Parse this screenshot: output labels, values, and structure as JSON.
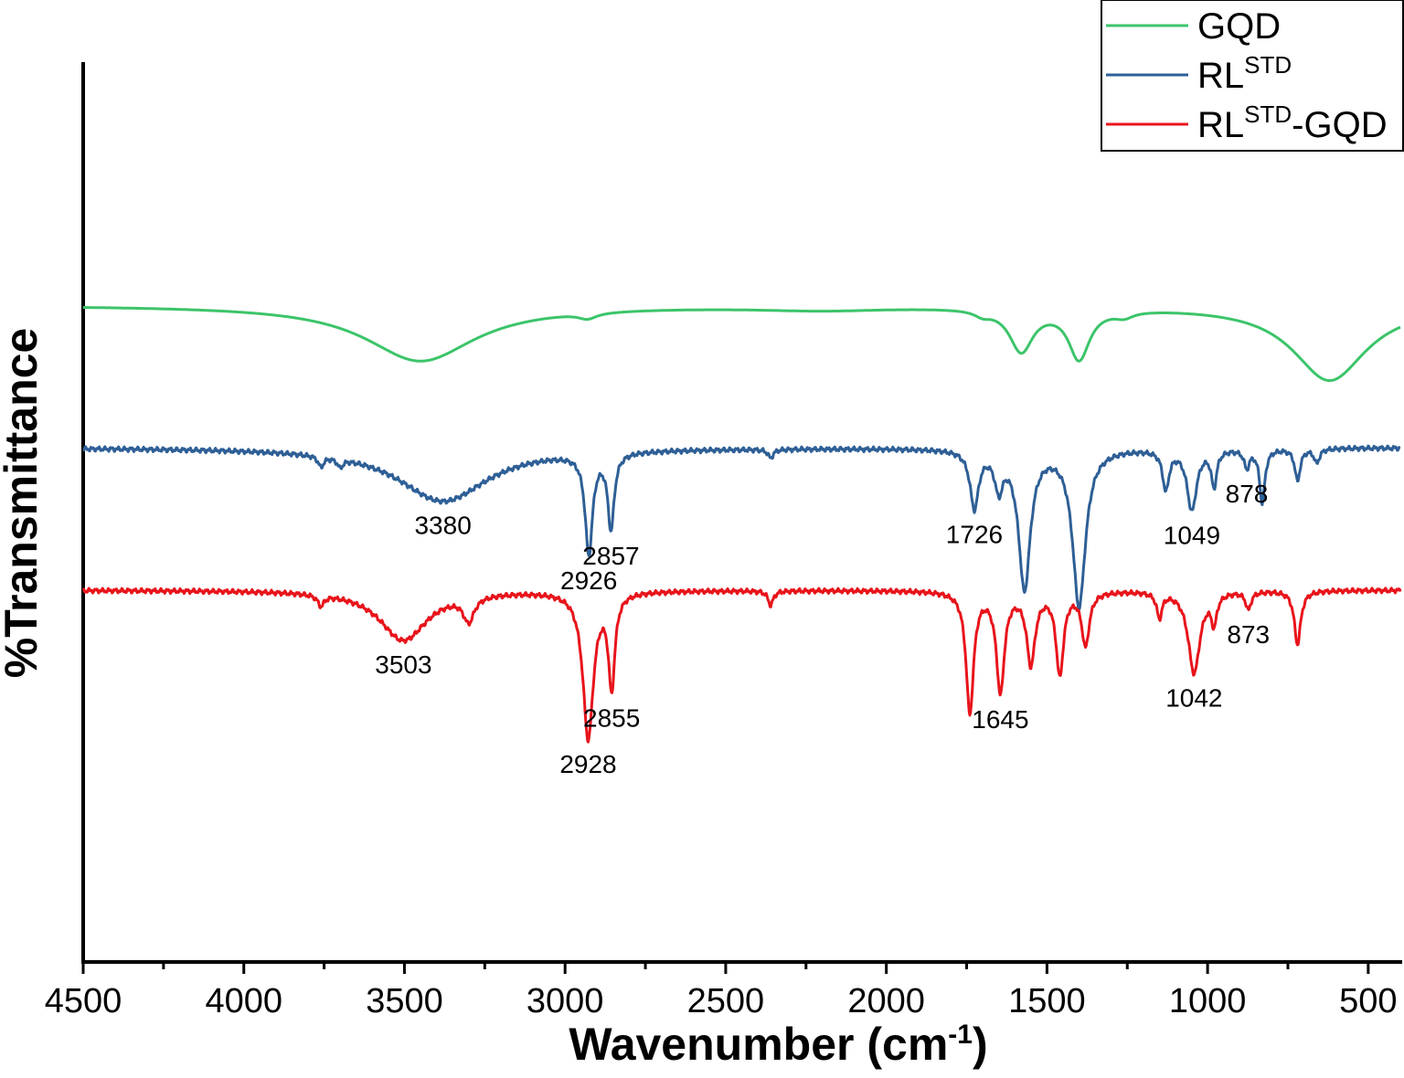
{
  "chart_data": {
    "type": "line",
    "title": "",
    "xlabel": "Wavenumber (cm",
    "xlabel_sup": "-1",
    "xlabel_close": ")",
    "ylabel": "%Transmittance",
    "xlim": [
      4500,
      400
    ],
    "x_reversed": true,
    "x_ticks": [
      4500,
      4000,
      3500,
      3000,
      2500,
      2000,
      1500,
      1000,
      500
    ],
    "y_ticks_shown": false,
    "grid": false,
    "legend_position": "top-right",
    "series": [
      {
        "name": "GQD",
        "legend_base": "GQD",
        "legend_sup": "",
        "legend_suffix": "",
        "color": "#3cc46a",
        "offset": 2.0,
        "baseline": 0.0,
        "bands": [
          {
            "center": 3450,
            "depth": 0.78,
            "width": 210
          },
          {
            "center": 2930,
            "depth": 0.08,
            "width": 35
          },
          {
            "center": 2200,
            "depth": 0.05,
            "width": 250
          },
          {
            "center": 1700,
            "depth": 0.07,
            "width": 30
          },
          {
            "center": 1580,
            "depth": 0.6,
            "width": 45
          },
          {
            "center": 1400,
            "depth": 0.7,
            "width": 40
          },
          {
            "center": 1260,
            "depth": 0.08,
            "width": 35
          },
          {
            "center": 620,
            "depth": 1.05,
            "width": 140
          }
        ]
      },
      {
        "name": "RL^STD",
        "legend_base": "RL",
        "legend_sup": "STD",
        "legend_suffix": "",
        "color": "#2e5f96",
        "offset": 0.0,
        "baseline": 0.0,
        "bands": [
          {
            "center": 3760,
            "depth": 0.15,
            "width": 10
          },
          {
            "center": 3700,
            "depth": 0.12,
            "width": 10
          },
          {
            "center": 3380,
            "depth": 0.75,
            "width": 170
          },
          {
            "center": 2926,
            "depth": 1.4,
            "width": 14
          },
          {
            "center": 2857,
            "depth": 1.05,
            "width": 12
          },
          {
            "center": 2360,
            "depth": 0.12,
            "width": 10
          },
          {
            "center": 1726,
            "depth": 0.8,
            "width": 16
          },
          {
            "center": 1650,
            "depth": 0.5,
            "width": 15
          },
          {
            "center": 1570,
            "depth": 1.95,
            "width": 22
          },
          {
            "center": 1400,
            "depth": 2.2,
            "width": 24
          },
          {
            "center": 1130,
            "depth": 0.55,
            "width": 12
          },
          {
            "center": 1049,
            "depth": 0.85,
            "width": 18
          },
          {
            "center": 980,
            "depth": 0.5,
            "width": 10
          },
          {
            "center": 878,
            "depth": 0.25,
            "width": 10
          },
          {
            "center": 830,
            "depth": 0.75,
            "width": 10
          },
          {
            "center": 720,
            "depth": 0.45,
            "width": 10
          },
          {
            "center": 660,
            "depth": 0.2,
            "width": 10
          }
        ]
      },
      {
        "name": "RL^STD-GQD",
        "legend_base": "RL",
        "legend_sup": "STD",
        "legend_suffix": "-GQD",
        "color": "#e8141b",
        "offset": -2.0,
        "baseline": 0.0,
        "bands": [
          {
            "center": 3760,
            "depth": 0.15,
            "width": 12
          },
          {
            "center": 3503,
            "depth": 0.7,
            "width": 90
          },
          {
            "center": 3300,
            "depth": 0.35,
            "width": 20
          },
          {
            "center": 2928,
            "depth": 2.05,
            "width": 20
          },
          {
            "center": 2855,
            "depth": 1.3,
            "width": 12
          },
          {
            "center": 2360,
            "depth": 0.2,
            "width": 10
          },
          {
            "center": 1740,
            "depth": 1.7,
            "width": 14
          },
          {
            "center": 1645,
            "depth": 1.4,
            "width": 15
          },
          {
            "center": 1550,
            "depth": 1.0,
            "width": 16
          },
          {
            "center": 1460,
            "depth": 1.15,
            "width": 14
          },
          {
            "center": 1380,
            "depth": 0.75,
            "width": 14
          },
          {
            "center": 1150,
            "depth": 0.35,
            "width": 10
          },
          {
            "center": 1042,
            "depth": 1.15,
            "width": 22
          },
          {
            "center": 980,
            "depth": 0.4,
            "width": 10
          },
          {
            "center": 873,
            "depth": 0.25,
            "width": 10
          },
          {
            "center": 720,
            "depth": 0.75,
            "width": 12
          }
        ]
      }
    ],
    "annotations": [
      {
        "text": "3380",
        "x": 3380,
        "series": 1
      },
      {
        "text": "2926",
        "x": 2926,
        "series": 1
      },
      {
        "text": "2857",
        "x": 2857,
        "series": 1
      },
      {
        "text": "1726",
        "x": 1726,
        "series": 1
      },
      {
        "text": "1049",
        "x": 1049,
        "series": 1
      },
      {
        "text": "878",
        "x": 878,
        "series": 1
      },
      {
        "text": "3503",
        "x": 3503,
        "series": 2
      },
      {
        "text": "2928",
        "x": 2928,
        "series": 2
      },
      {
        "text": "2855",
        "x": 2855,
        "series": 2
      },
      {
        "text": "1645",
        "x": 1645,
        "series": 2
      },
      {
        "text": "1042",
        "x": 1042,
        "series": 2
      },
      {
        "text": "873",
        "x": 873,
        "series": 2
      }
    ]
  }
}
